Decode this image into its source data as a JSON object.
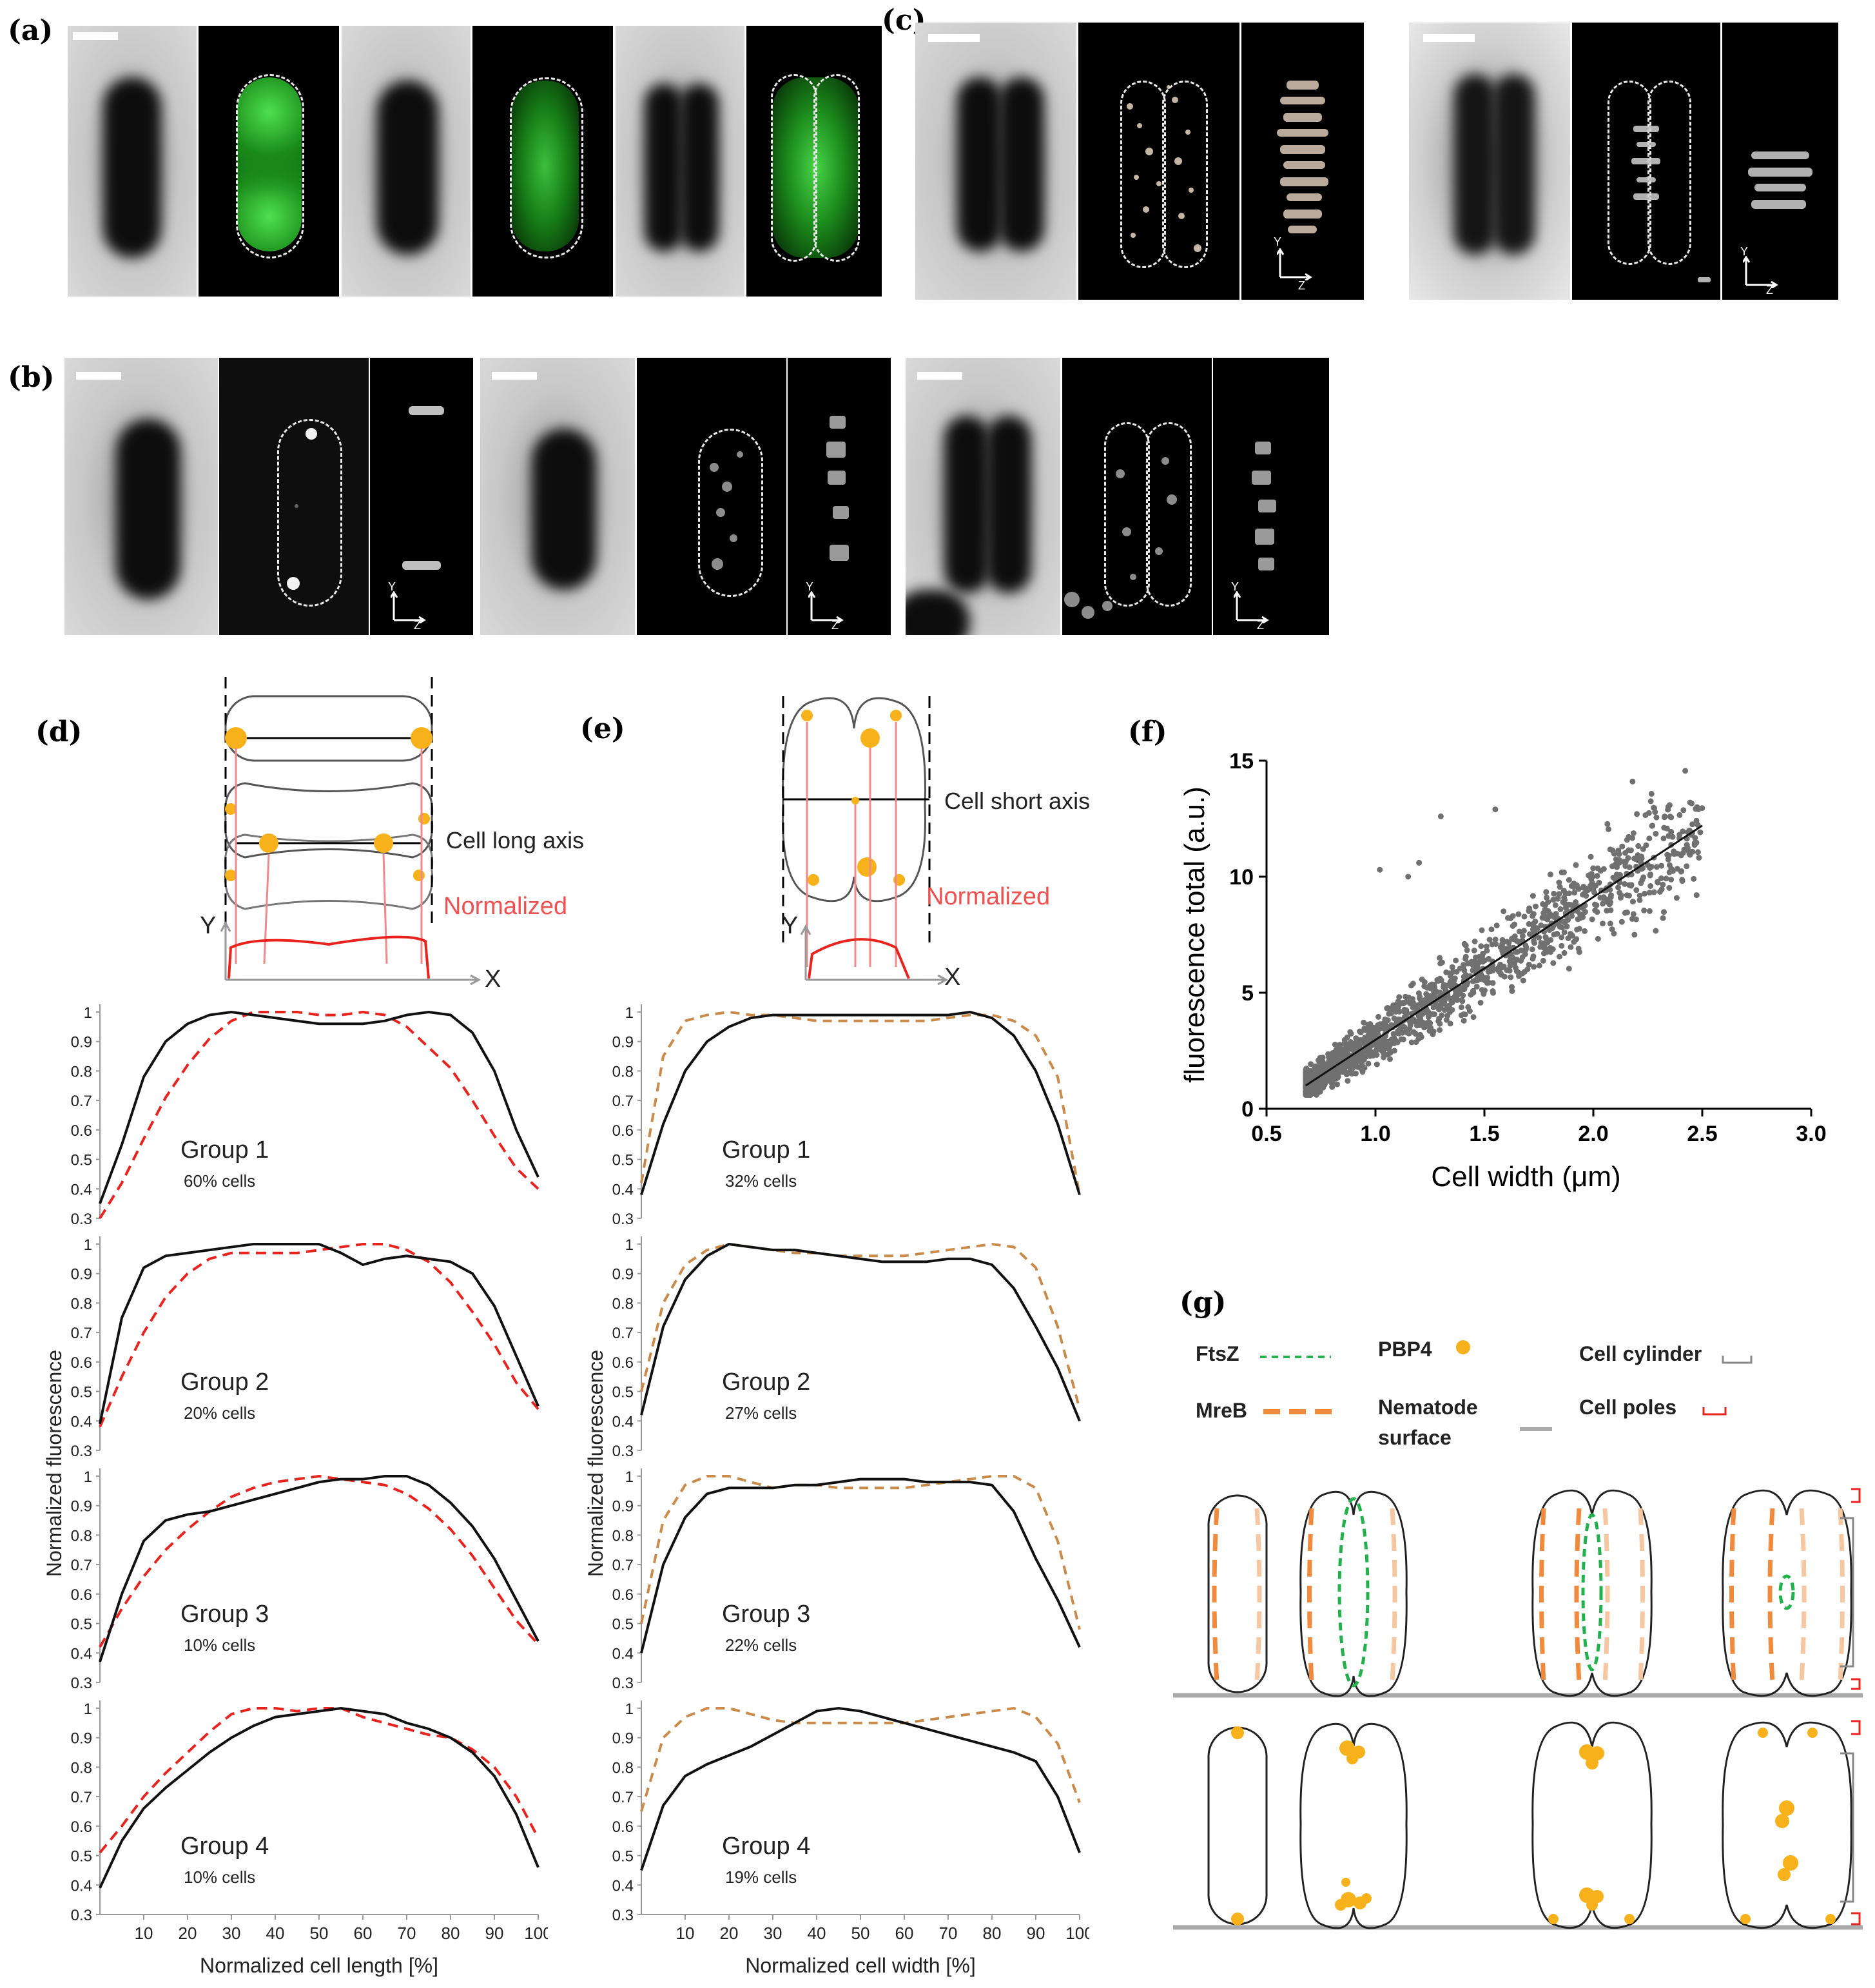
{
  "panels": {
    "a": "(a)",
    "b": "(b)",
    "c": "(c)",
    "d": "(d)",
    "e": "(e)",
    "f": "(f)",
    "g": "(g)"
  },
  "microscopy": {
    "axis_y": "Y",
    "axis_z": "Z"
  },
  "schematic_d": {
    "axis_label": "Cell long axis",
    "normalized": "Normalized",
    "y": "Y",
    "x": "X"
  },
  "schematic_e": {
    "axis_label": "Cell short axis",
    "normalized": "Normalized",
    "y": "Y",
    "x": "X"
  },
  "legend_g": {
    "ftsz": "FtsZ",
    "pbp4": "PBP4",
    "cylinder": "Cell cylinder",
    "mreb": "MreB",
    "nematode": "Nematode",
    "surface": "surface",
    "poles": "Cell poles"
  },
  "colors": {
    "black_line": "#111111",
    "red_dashed": "#e8231e",
    "orange_dashed": "#c98a4a",
    "scatter": "#707070",
    "ftsz": "#22b14c",
    "mreb": "#f08a3c",
    "pbp4": "#f7b21b",
    "pole_bracket": "#e8231e"
  },
  "chart_data": [
    {
      "id": "d",
      "type": "line",
      "xlabel": "Normalized cell length [%]",
      "ylabel": "Normalized fluorescence",
      "xticks": [
        "10",
        "20",
        "30",
        "40",
        "50",
        "60",
        "70",
        "80",
        "90",
        "100"
      ],
      "yticks": [
        "0.3",
        "0.4",
        "0.5",
        "0.6",
        "0.7",
        "0.8",
        "0.9",
        "1"
      ],
      "xlim": [
        0,
        100
      ],
      "ylim": [
        0.3,
        1.0
      ],
      "x": [
        0,
        5,
        10,
        15,
        20,
        25,
        30,
        35,
        40,
        45,
        50,
        55,
        60,
        65,
        70,
        75,
        80,
        85,
        90,
        95,
        100
      ],
      "groups": [
        {
          "name": "Group 1",
          "note": "60% cells",
          "black": [
            0.35,
            0.55,
            0.78,
            0.9,
            0.96,
            0.99,
            1.0,
            0.99,
            0.98,
            0.97,
            0.96,
            0.96,
            0.96,
            0.97,
            0.99,
            1.0,
            0.99,
            0.93,
            0.8,
            0.6,
            0.44
          ],
          "dashed": [
            0.3,
            0.42,
            0.57,
            0.71,
            0.82,
            0.91,
            0.97,
            1.0,
            1.0,
            1.0,
            0.99,
            0.99,
            1.0,
            0.99,
            0.95,
            0.88,
            0.81,
            0.7,
            0.58,
            0.47,
            0.4
          ]
        },
        {
          "name": "Group 2",
          "note": "20% cells",
          "black": [
            0.39,
            0.75,
            0.92,
            0.96,
            0.97,
            0.98,
            0.99,
            1.0,
            1.0,
            1.0,
            1.0,
            0.97,
            0.93,
            0.95,
            0.96,
            0.95,
            0.94,
            0.9,
            0.79,
            0.62,
            0.45
          ],
          "dashed": [
            0.38,
            0.55,
            0.7,
            0.82,
            0.9,
            0.95,
            0.97,
            0.97,
            0.97,
            0.97,
            0.98,
            0.99,
            1.0,
            1.0,
            0.98,
            0.94,
            0.87,
            0.77,
            0.66,
            0.53,
            0.44
          ]
        },
        {
          "name": "Group 3",
          "note": "10% cells",
          "black": [
            0.37,
            0.6,
            0.78,
            0.85,
            0.87,
            0.88,
            0.9,
            0.92,
            0.94,
            0.96,
            0.98,
            0.99,
            0.99,
            1.0,
            1.0,
            0.97,
            0.91,
            0.83,
            0.72,
            0.58,
            0.44
          ],
          "dashed": [
            0.42,
            0.55,
            0.66,
            0.75,
            0.82,
            0.88,
            0.93,
            0.96,
            0.98,
            0.99,
            1.0,
            0.99,
            0.98,
            0.97,
            0.94,
            0.89,
            0.82,
            0.73,
            0.62,
            0.51,
            0.43
          ]
        },
        {
          "name": "Group 4",
          "note": "10% cells",
          "black": [
            0.39,
            0.55,
            0.66,
            0.73,
            0.79,
            0.85,
            0.9,
            0.94,
            0.97,
            0.98,
            0.99,
            1.0,
            0.99,
            0.98,
            0.95,
            0.93,
            0.9,
            0.85,
            0.77,
            0.64,
            0.46
          ],
          "dashed": [
            0.51,
            0.6,
            0.7,
            0.78,
            0.85,
            0.92,
            0.98,
            1.0,
            1.0,
            0.99,
            1.0,
            1.0,
            0.97,
            0.95,
            0.93,
            0.91,
            0.9,
            0.86,
            0.8,
            0.7,
            0.56
          ]
        }
      ]
    },
    {
      "id": "e",
      "type": "line",
      "xlabel": "Normalized cell width [%]",
      "ylabel": "Normalized fluorescence",
      "xticks": [
        "10",
        "20",
        "30",
        "40",
        "50",
        "60",
        "70",
        "80",
        "90",
        "100"
      ],
      "yticks": [
        "0.3",
        "0.4",
        "0.5",
        "0.6",
        "0.7",
        "0.8",
        "0.9",
        "1"
      ],
      "xlim": [
        0,
        100
      ],
      "ylim": [
        0.3,
        1.0
      ],
      "x": [
        0,
        5,
        10,
        15,
        20,
        25,
        30,
        35,
        40,
        45,
        50,
        55,
        60,
        65,
        70,
        75,
        80,
        85,
        90,
        95,
        100
      ],
      "groups": [
        {
          "name": "Group 1",
          "note": "32% cells",
          "black": [
            0.38,
            0.62,
            0.8,
            0.9,
            0.95,
            0.98,
            0.99,
            0.99,
            0.99,
            0.99,
            0.99,
            0.99,
            0.99,
            0.99,
            0.99,
            1.0,
            0.98,
            0.92,
            0.8,
            0.62,
            0.38
          ],
          "dashed": [
            0.42,
            0.85,
            0.97,
            0.99,
            1.0,
            0.99,
            0.99,
            0.98,
            0.97,
            0.97,
            0.97,
            0.97,
            0.97,
            0.97,
            0.98,
            0.99,
            0.99,
            0.97,
            0.92,
            0.78,
            0.38
          ]
        },
        {
          "name": "Group 2",
          "note": "27% cells",
          "black": [
            0.42,
            0.72,
            0.88,
            0.96,
            1.0,
            0.99,
            0.98,
            0.98,
            0.97,
            0.96,
            0.95,
            0.94,
            0.94,
            0.94,
            0.95,
            0.95,
            0.93,
            0.85,
            0.72,
            0.58,
            0.4
          ],
          "dashed": [
            0.5,
            0.8,
            0.93,
            0.98,
            1.0,
            0.99,
            0.98,
            0.97,
            0.97,
            0.96,
            0.96,
            0.96,
            0.96,
            0.97,
            0.98,
            0.99,
            1.0,
            0.99,
            0.92,
            0.72,
            0.44
          ]
        },
        {
          "name": "Group 3",
          "note": "22% cells",
          "black": [
            0.4,
            0.7,
            0.86,
            0.94,
            0.96,
            0.96,
            0.96,
            0.97,
            0.97,
            0.98,
            0.99,
            0.99,
            0.99,
            0.98,
            0.98,
            0.98,
            0.97,
            0.88,
            0.72,
            0.58,
            0.42
          ],
          "dashed": [
            0.5,
            0.85,
            0.97,
            1.0,
            1.0,
            0.98,
            0.96,
            0.97,
            0.97,
            0.96,
            0.96,
            0.96,
            0.96,
            0.97,
            0.98,
            0.99,
            1.0,
            1.0,
            0.96,
            0.78,
            0.48
          ]
        },
        {
          "name": "Group 4",
          "note": "19% cells",
          "black": [
            0.45,
            0.67,
            0.77,
            0.81,
            0.84,
            0.87,
            0.91,
            0.95,
            0.99,
            1.0,
            0.99,
            0.97,
            0.95,
            0.93,
            0.91,
            0.89,
            0.87,
            0.85,
            0.82,
            0.7,
            0.51
          ],
          "dashed": [
            0.65,
            0.9,
            0.97,
            1.0,
            1.0,
            0.98,
            0.96,
            0.95,
            0.95,
            0.95,
            0.95,
            0.95,
            0.95,
            0.96,
            0.97,
            0.98,
            0.99,
            1.0,
            0.97,
            0.88,
            0.68
          ]
        }
      ]
    },
    {
      "id": "f",
      "type": "scatter",
      "xlabel": "Cell width (μm)",
      "ylabel": "fluorescence total (a.u.)",
      "xticks": [
        "0.5",
        "1.0",
        "1.5",
        "2.0",
        "2.5",
        "3.0"
      ],
      "yticks": [
        "0",
        "5",
        "10",
        "15"
      ],
      "xlim": [
        0.5,
        3.0
      ],
      "ylim": [
        0,
        15
      ],
      "fit": {
        "x": [
          0.68,
          2.5
        ],
        "y": [
          1.0,
          12.2
        ]
      },
      "outliers": [
        [
          2.18,
          14.1
        ],
        [
          1.3,
          12.6
        ],
        [
          1.55,
          12.9
        ],
        [
          2.2,
          12.7
        ],
        [
          1.2,
          10.6
        ],
        [
          1.02,
          10.3
        ],
        [
          1.15,
          10.0
        ],
        [
          2.45,
          11.8
        ],
        [
          2.35,
          10.5
        ],
        [
          1.9,
          9.6
        ]
      ]
    }
  ]
}
